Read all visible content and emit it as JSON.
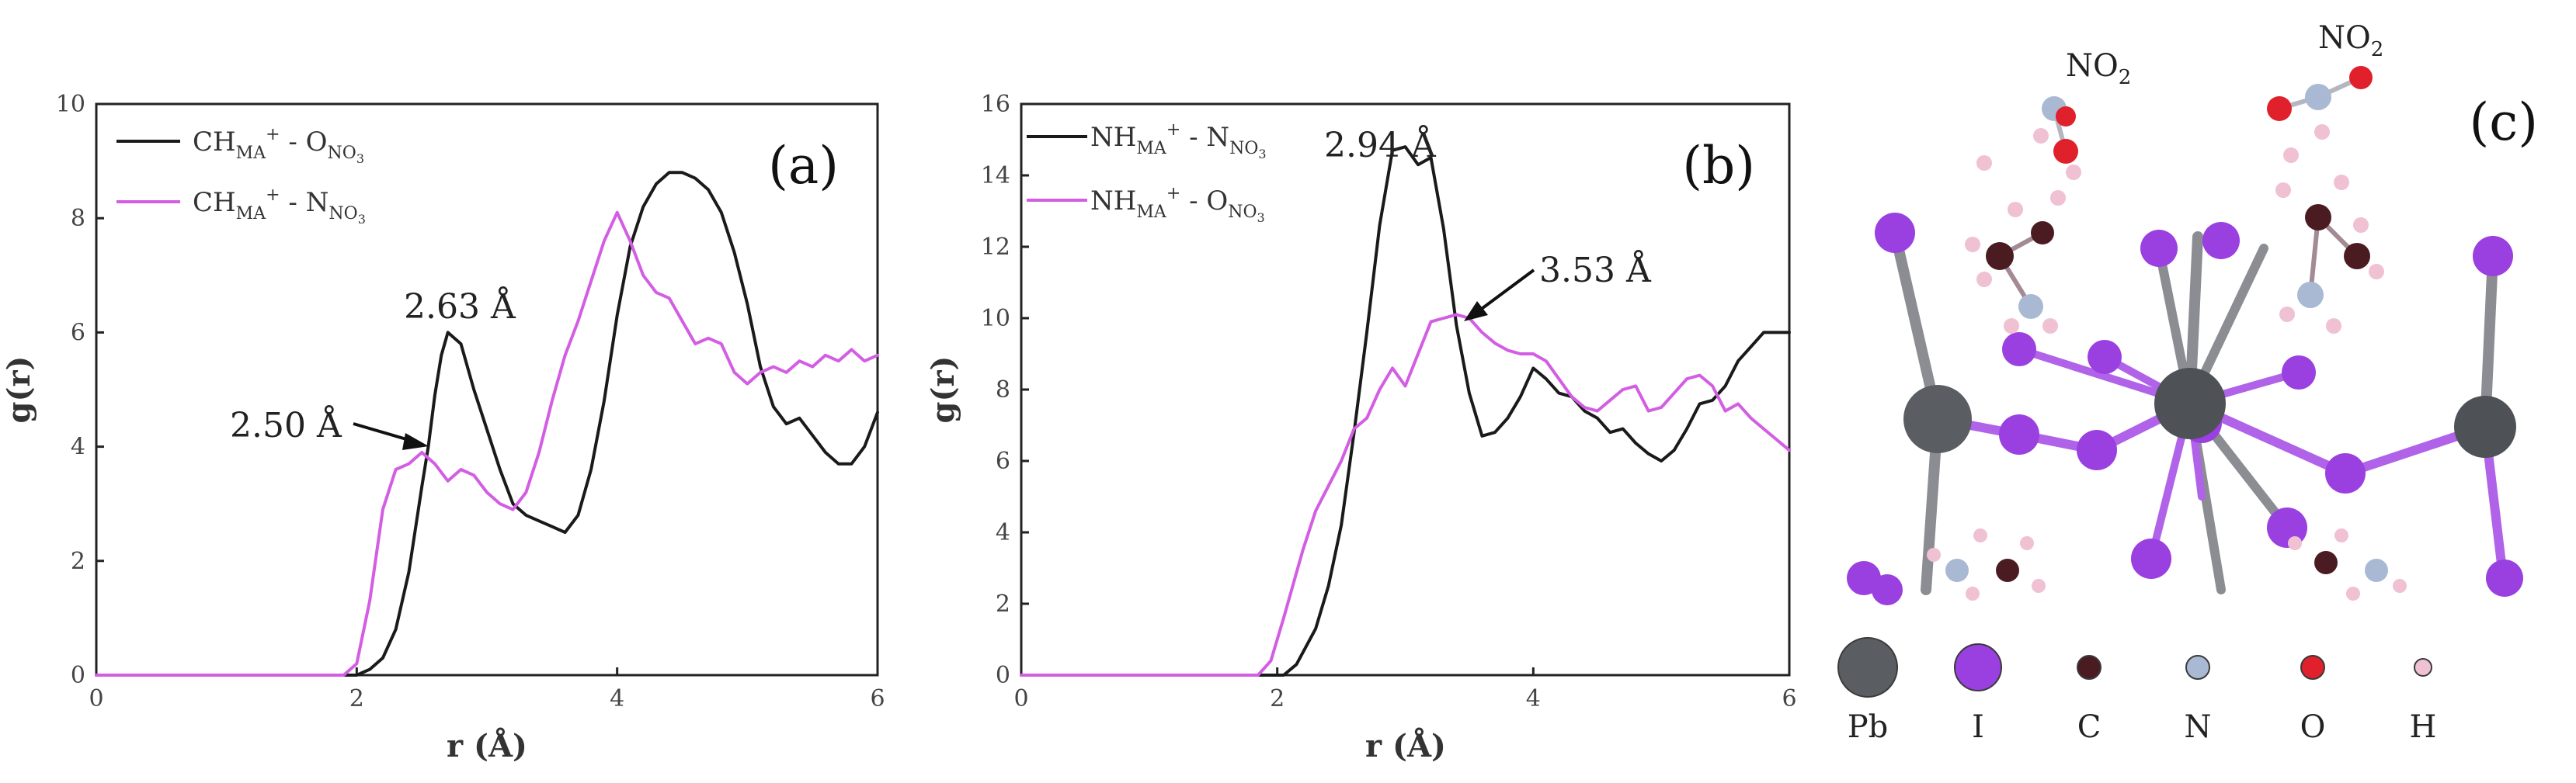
{
  "chart_data": [
    {
      "type": "line",
      "panel_label": "(a)",
      "xlabel": "r (Å)",
      "ylabel": "g(r)",
      "xlim": [
        0,
        6
      ],
      "ylim": [
        0,
        10
      ],
      "xticks": [
        0,
        2,
        4,
        6
      ],
      "yticks": [
        0,
        2,
        4,
        6,
        8,
        10
      ],
      "legend_position": "top-left",
      "series": [
        {
          "name": "CH_MA+ - O_NO3",
          "color": "#1a1a1a",
          "x": [
            0,
            2.0,
            2.1,
            2.2,
            2.3,
            2.4,
            2.5,
            2.55,
            2.6,
            2.65,
            2.7,
            2.8,
            2.9,
            3.0,
            3.1,
            3.2,
            3.3,
            3.4,
            3.5,
            3.6,
            3.7,
            3.8,
            3.9,
            4.0,
            4.1,
            4.2,
            4.3,
            4.4,
            4.5,
            4.6,
            4.7,
            4.8,
            4.9,
            5.0,
            5.1,
            5.2,
            5.3,
            5.4,
            5.5,
            5.6,
            5.7,
            5.8,
            5.9,
            6.0
          ],
          "y": [
            0,
            0,
            0.1,
            0.3,
            0.8,
            1.8,
            3.3,
            4.0,
            4.9,
            5.6,
            6.0,
            5.8,
            5.0,
            4.3,
            3.6,
            3.0,
            2.8,
            2.7,
            2.6,
            2.5,
            2.8,
            3.6,
            4.8,
            6.3,
            7.5,
            8.2,
            8.6,
            8.8,
            8.8,
            8.7,
            8.5,
            8.1,
            7.4,
            6.5,
            5.4,
            4.7,
            4.4,
            4.5,
            4.2,
            3.9,
            3.7,
            3.7,
            4.0,
            4.6
          ]
        },
        {
          "name": "CH_MA+ - N_NO3",
          "color": "#d35de3",
          "x": [
            0,
            1.9,
            2.0,
            2.1,
            2.2,
            2.3,
            2.4,
            2.5,
            2.6,
            2.7,
            2.8,
            2.9,
            3.0,
            3.1,
            3.2,
            3.3,
            3.4,
            3.5,
            3.6,
            3.7,
            3.8,
            3.9,
            4.0,
            4.1,
            4.2,
            4.3,
            4.4,
            4.5,
            4.6,
            4.7,
            4.8,
            4.9,
            5.0,
            5.1,
            5.2,
            5.3,
            5.4,
            5.5,
            5.6,
            5.7,
            5.8,
            5.9,
            6.0
          ],
          "y": [
            0,
            0,
            0.2,
            1.3,
            2.9,
            3.6,
            3.7,
            3.9,
            3.7,
            3.4,
            3.6,
            3.5,
            3.2,
            3.0,
            2.9,
            3.2,
            3.9,
            4.8,
            5.6,
            6.2,
            6.9,
            7.6,
            8.1,
            7.6,
            7.0,
            6.7,
            6.6,
            6.2,
            5.8,
            5.9,
            5.8,
            5.3,
            5.1,
            5.3,
            5.4,
            5.3,
            5.5,
            5.4,
            5.6,
            5.5,
            5.7,
            5.5,
            5.6
          ]
        }
      ],
      "annotations": [
        {
          "text": "2.63 Å",
          "x": 2.7,
          "y": 6.0
        },
        {
          "text": "2.50 Å",
          "x": 2.55,
          "y": 4.0
        }
      ]
    },
    {
      "type": "line",
      "panel_label": "(b)",
      "xlabel": "r (Å)",
      "ylabel": "g(r)",
      "xlim": [
        0,
        6
      ],
      "ylim": [
        0,
        16
      ],
      "xticks": [
        0,
        2,
        4,
        6
      ],
      "yticks": [
        0,
        2,
        4,
        6,
        8,
        10,
        12,
        14,
        16
      ],
      "legend_position": "top-left",
      "series": [
        {
          "name": "NH_MA+ - N_NO3",
          "color": "#1a1a1a",
          "x": [
            0,
            2.05,
            2.15,
            2.3,
            2.4,
            2.5,
            2.6,
            2.7,
            2.8,
            2.9,
            3.0,
            3.1,
            3.2,
            3.3,
            3.4,
            3.5,
            3.6,
            3.7,
            3.8,
            3.9,
            4.0,
            4.1,
            4.2,
            4.3,
            4.4,
            4.5,
            4.6,
            4.7,
            4.8,
            4.9,
            5.0,
            5.1,
            5.2,
            5.3,
            5.4,
            5.5,
            5.6,
            5.7,
            5.8,
            5.9,
            6.0
          ],
          "y": [
            0,
            0,
            0.3,
            1.3,
            2.5,
            4.2,
            6.8,
            9.6,
            12.6,
            14.7,
            14.8,
            14.3,
            14.5,
            12.5,
            9.8,
            7.9,
            6.7,
            6.8,
            7.2,
            7.8,
            8.6,
            8.3,
            7.9,
            7.8,
            7.4,
            7.2,
            6.8,
            6.9,
            6.5,
            6.2,
            6.0,
            6.3,
            6.9,
            7.6,
            7.7,
            8.1,
            8.8,
            9.2,
            9.6,
            9.6,
            9.6
          ]
        },
        {
          "name": "NH_MA+ - O_NO3",
          "color": "#d35de3",
          "x": [
            0,
            1.85,
            1.95,
            2.05,
            2.2,
            2.3,
            2.4,
            2.5,
            2.6,
            2.7,
            2.8,
            2.9,
            3.0,
            3.1,
            3.2,
            3.3,
            3.4,
            3.5,
            3.6,
            3.7,
            3.8,
            3.9,
            4.0,
            4.1,
            4.2,
            4.3,
            4.4,
            4.5,
            4.6,
            4.7,
            4.8,
            4.9,
            5.0,
            5.1,
            5.2,
            5.3,
            5.4,
            5.5,
            5.6,
            5.7,
            5.8,
            5.9,
            6.0
          ],
          "y": [
            0,
            0,
            0.4,
            1.6,
            3.5,
            4.6,
            5.3,
            6.0,
            6.9,
            7.2,
            8.0,
            8.6,
            8.1,
            9.0,
            9.9,
            10.0,
            10.1,
            10.0,
            9.6,
            9.3,
            9.1,
            9.0,
            9.0,
            8.8,
            8.3,
            7.8,
            7.5,
            7.4,
            7.7,
            8.0,
            8.1,
            7.4,
            7.5,
            7.9,
            8.3,
            8.4,
            8.1,
            7.4,
            7.6,
            7.2,
            6.9,
            6.6,
            6.3
          ]
        }
      ],
      "annotations": [
        {
          "text": "2.94 Å",
          "x": 2.94,
          "y": 14.8
        },
        {
          "text": "3.53 Å",
          "x": 3.4,
          "y": 10.1
        }
      ]
    }
  ],
  "panels": {
    "a": {
      "legend": [
        {
          "main": "CH",
          "sub1": "MA",
          "sup1": "+",
          "mid": " - O",
          "sub2": "NO",
          "sub3": "3"
        },
        {
          "main": "CH",
          "sub1": "MA",
          "sup1": "+",
          "mid": " - N",
          "sub2": "NO",
          "sub3": "3"
        }
      ]
    },
    "b": {
      "legend": [
        {
          "main": "NH",
          "sub1": "MA",
          "sup1": "+",
          "mid": " - N",
          "sub2": "NO",
          "sub3": "3"
        },
        {
          "main": "NH",
          "sub1": "MA",
          "sup1": "+",
          "mid": " - O",
          "sub2": "NO",
          "sub3": "3"
        }
      ]
    },
    "c": {
      "panel_label": "(c)",
      "no2_label_main": "NO",
      "no2_label_sub": "2",
      "atoms_legend": [
        {
          "symbol": "Pb",
          "color": "#5a5d62",
          "icon": "pb-atom-icon"
        },
        {
          "symbol": "I",
          "color": "#9a3fe0",
          "icon": "i-atom-icon"
        },
        {
          "symbol": "C",
          "color": "#4a1c22",
          "icon": "c-atom-icon"
        },
        {
          "symbol": "N",
          "color": "#a9b9d3",
          "icon": "n-atom-icon"
        },
        {
          "symbol": "O",
          "color": "#e0202a",
          "icon": "o-atom-icon"
        },
        {
          "symbol": "H",
          "color": "#efc1d3",
          "icon": "h-atom-icon"
        }
      ]
    }
  }
}
